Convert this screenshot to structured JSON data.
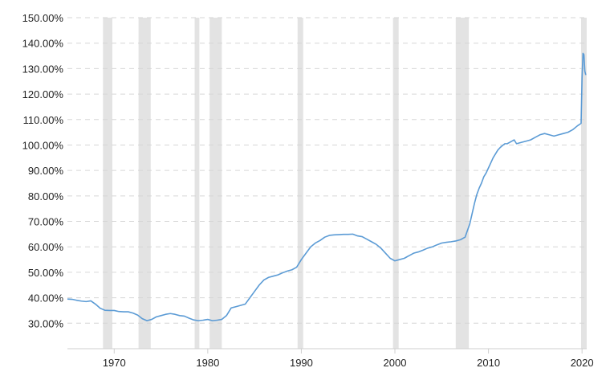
{
  "chart_data": {
    "type": "line",
    "title": "",
    "xlabel": "",
    "ylabel": "",
    "xlim": [
      1965,
      2020.5
    ],
    "ylim": [
      20,
      150
    ],
    "y_ticks": [
      30,
      40,
      50,
      60,
      70,
      80,
      90,
      100,
      110,
      120,
      130,
      140,
      150
    ],
    "y_tick_labels": [
      "30.00%",
      "40.00%",
      "50.00%",
      "60.00%",
      "70.00%",
      "80.00%",
      "90.00%",
      "100.00%",
      "110.00%",
      "120.00%",
      "130.00%",
      "140.00%",
      "150.00%"
    ],
    "x_ticks": [
      1970,
      1980,
      1990,
      2000,
      2010,
      2020
    ],
    "x_tick_labels": [
      "1970",
      "1980",
      "1990",
      "2000",
      "2010",
      "2020"
    ],
    "grid": "horizontal dashed",
    "line_color": "#5b9bd5",
    "band_color": "#e3e3e3",
    "shaded_periods": [
      [
        1968.8,
        1969.8
      ],
      [
        1972.6,
        1973.9
      ],
      [
        1978.6,
        1979.1
      ],
      [
        1980.2,
        1981.5
      ],
      [
        1989.6,
        1990.2
      ],
      [
        1999.8,
        2000.4
      ],
      [
        2006.5,
        2007.9
      ],
      [
        2019.9,
        2020.5
      ]
    ],
    "series": [
      {
        "x": [
          1965.0,
          1965.5,
          1966.0,
          1966.5,
          1967.0,
          1967.5,
          1968.0,
          1968.5,
          1969.0,
          1969.5,
          1970.0,
          1970.5,
          1971.0,
          1971.5,
          1972.0,
          1972.5,
          1973.0,
          1973.5,
          1974.0,
          1974.5,
          1975.0,
          1975.5,
          1976.0,
          1976.5,
          1977.0,
          1977.5,
          1978.0,
          1978.5,
          1979.0,
          1979.5,
          1980.0,
          1980.5,
          1981.0,
          1981.5,
          1982.0,
          1982.5,
          1983.0,
          1983.5,
          1984.0,
          1984.5,
          1985.0,
          1985.5,
          1986.0,
          1986.5,
          1987.0,
          1987.5,
          1988.0,
          1988.5,
          1989.0,
          1989.5,
          1990.0,
          1990.5,
          1991.0,
          1991.5,
          1992.0,
          1992.5,
          1993.0,
          1993.5,
          1994.0,
          1994.5,
          1995.0,
          1995.5,
          1996.0,
          1996.5,
          1997.0,
          1997.5,
          1998.0,
          1998.5,
          1999.0,
          1999.5,
          2000.0,
          2000.5,
          2001.0,
          2001.5,
          2002.0,
          2002.5,
          2003.0,
          2003.5,
          2004.0,
          2004.5,
          2005.0,
          2005.5,
          2006.0,
          2006.5,
          2007.0,
          2007.5,
          2008.0,
          2008.25,
          2008.5,
          2008.75,
          2009.0,
          2009.25,
          2009.5,
          2009.75,
          2010.0,
          2010.25,
          2010.5,
          2010.75,
          2011.0,
          2011.25,
          2011.5,
          2011.75,
          2012.0,
          2012.25,
          2012.5,
          2012.75,
          2013.0,
          2013.5,
          2014.0,
          2014.5,
          2015.0,
          2015.5,
          2016.0,
          2016.5,
          2017.0,
          2017.5,
          2018.0,
          2018.5,
          2019.0,
          2019.5,
          2019.9,
          2020.0,
          2020.1,
          2020.2,
          2020.3,
          2020.4
        ],
        "y": [
          39.5,
          39.4,
          39.0,
          38.7,
          38.5,
          38.8,
          37.5,
          35.9,
          35.1,
          35.0,
          35.0,
          34.6,
          34.5,
          34.5,
          34.0,
          33.2,
          31.8,
          31.0,
          31.5,
          32.5,
          33.0,
          33.5,
          33.8,
          33.5,
          33.0,
          32.8,
          32.0,
          31.3,
          31.0,
          31.2,
          31.5,
          31.0,
          31.2,
          31.5,
          33.0,
          36.0,
          36.5,
          37.0,
          37.5,
          40.0,
          42.5,
          45.0,
          47.0,
          48.0,
          48.5,
          49.0,
          49.8,
          50.5,
          51.0,
          52.0,
          55.0,
          57.5,
          60.0,
          61.5,
          62.5,
          63.8,
          64.5,
          64.7,
          64.8,
          64.9,
          64.9,
          65.0,
          64.3,
          64.0,
          63.0,
          62.0,
          61.0,
          59.5,
          57.5,
          55.5,
          54.5,
          55.0,
          55.5,
          56.5,
          57.5,
          58.0,
          58.7,
          59.5,
          60.0,
          60.8,
          61.5,
          61.8,
          62.0,
          62.3,
          62.8,
          63.8,
          69.0,
          73.0,
          77.0,
          80.5,
          83.0,
          85.0,
          87.5,
          89.0,
          91.0,
          93.0,
          95.0,
          96.5,
          98.0,
          99.0,
          99.8,
          100.5,
          100.5,
          101.0,
          101.5,
          102.0,
          100.5,
          101.0,
          101.5,
          102.0,
          103.0,
          104.0,
          104.5,
          104.0,
          103.5,
          104.0,
          104.5,
          105.0,
          106.0,
          107.5,
          108.5,
          126.0,
          136.0,
          135.5,
          129.0,
          127.5
        ]
      }
    ]
  }
}
